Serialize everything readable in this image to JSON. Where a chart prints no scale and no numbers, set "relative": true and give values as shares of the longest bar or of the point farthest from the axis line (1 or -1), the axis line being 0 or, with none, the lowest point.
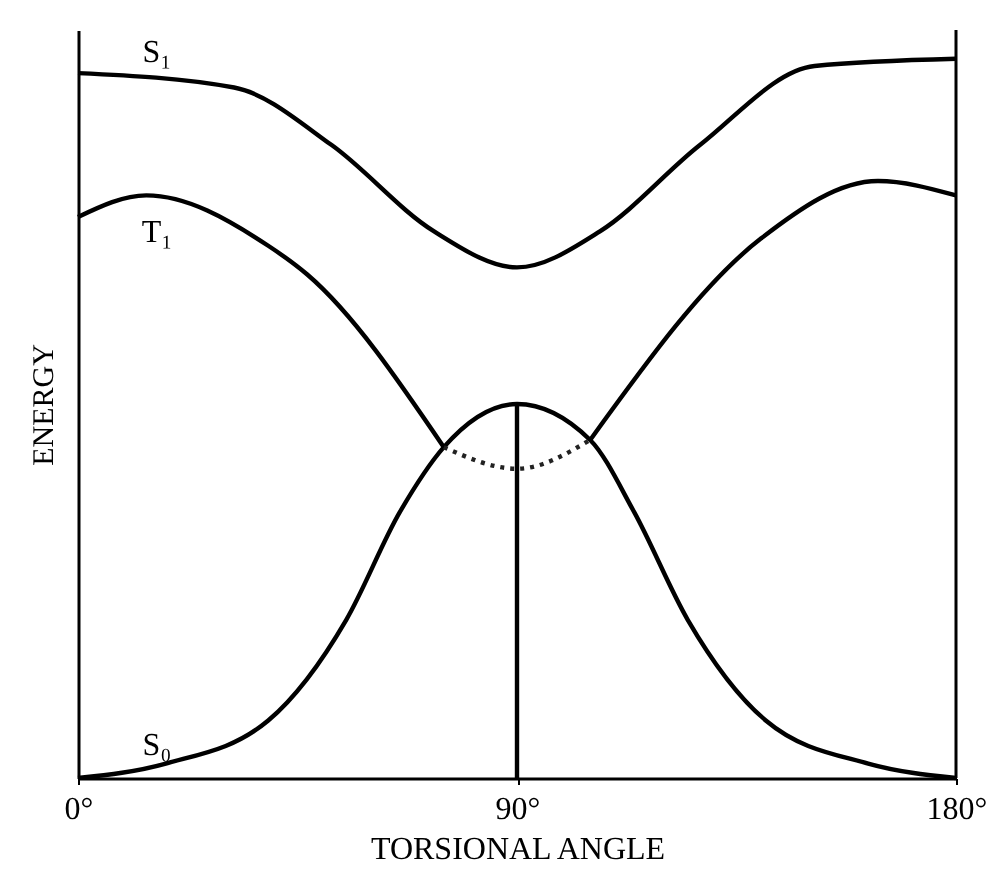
{
  "chart_data": {
    "type": "line",
    "relative": true,
    "xlabel": "TORSIONAL ANGLE",
    "ylabel": "ENERGY",
    "xlim": [
      0,
      180
    ],
    "xticks": [
      {
        "value": 0,
        "label": "0°"
      },
      {
        "value": 90,
        "label": "90°"
      },
      {
        "value": 180,
        "label": "180°"
      }
    ],
    "grid": false,
    "marker": "none",
    "series": [
      {
        "name": "S₁",
        "color": "#000000",
        "line_style": "solid",
        "x": [
          0,
          32,
          52,
          73,
          90,
          107,
          127.5,
          151,
          180
        ],
        "values": [
          0.98,
          0.96,
          0.88,
          0.76,
          0.71,
          0.76,
          0.88,
          0.99,
          1
        ]
      },
      {
        "name": "T₁",
        "color": "#000000",
        "line_style": "solid",
        "x": [
          0,
          14,
          39,
          47,
          75,
          90,
          105,
          140,
          164,
          180
        ],
        "values": [
          0.78,
          0.81,
          0.74,
          0.7,
          0.46,
          null,
          0.47,
          0.75,
          0.83,
          0.81
        ]
      },
      {
        "name": "S₀",
        "color": "#000000",
        "line_style": "solid",
        "x": [
          0,
          18,
          39,
          55,
          66,
          75,
          90,
          105,
          114,
          125,
          141,
          162,
          180
        ],
        "values": [
          0,
          0.02,
          0.08,
          0.22,
          0.37,
          0.46,
          0.52,
          0.47,
          0.37,
          0.22,
          0.08,
          0.02,
          0
        ]
      },
      {
        "color": "#000000",
        "line_style": "solid",
        "x": [
          90,
          90
        ],
        "values": [
          0,
          0.52
        ]
      },
      {
        "color": "#222222",
        "line_style": "dotted",
        "x": [
          75,
          90,
          105
        ],
        "values": [
          0.46,
          0.43,
          0.47
        ]
      }
    ]
  }
}
